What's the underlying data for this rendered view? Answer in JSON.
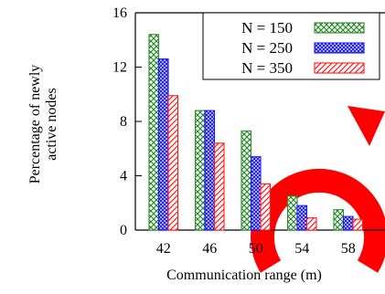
{
  "chart_data": {
    "type": "bar",
    "xlabel": "Communication range (m)",
    "ylabel_lines": [
      "Percentage of newly",
      "active nodes"
    ],
    "ylim": [
      0,
      16
    ],
    "yticks": [
      0,
      4,
      8,
      12,
      16
    ],
    "categories": [
      "42",
      "46",
      "50",
      "54",
      "58"
    ],
    "series": [
      {
        "name": "N = 150",
        "values": [
          14.4,
          8.8,
          7.3,
          2.5,
          1.5
        ],
        "color": "#2e8b2e",
        "pattern": "crosshatch"
      },
      {
        "name": "N = 250",
        "values": [
          12.6,
          8.8,
          5.4,
          1.8,
          1.0
        ],
        "color": "#1a1aff",
        "pattern": "dense-crosshatch"
      },
      {
        "name": "N = 350",
        "values": [
          9.9,
          6.4,
          3.4,
          0.9,
          0.8
        ],
        "color": "#ff1a1a",
        "pattern": "diagonal"
      }
    ],
    "legend_position": "top-right",
    "grid": false
  },
  "decoration": {
    "watermark_color": "#ff0000"
  }
}
